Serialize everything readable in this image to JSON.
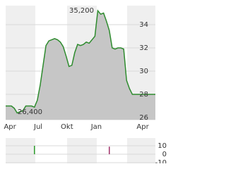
{
  "chart_data": [
    {
      "type": "area",
      "color": "#2e8b2e",
      "fill": "#c6c6c6",
      "x": [
        0,
        1,
        2,
        3,
        4,
        5,
        6,
        7,
        8,
        9,
        10,
        11,
        12,
        13,
        14,
        15,
        16,
        17,
        18,
        19,
        20,
        21,
        22,
        23,
        24,
        25,
        26,
        27,
        28,
        29,
        30,
        31,
        32,
        33,
        34,
        35,
        36,
        37,
        38,
        39,
        40,
        41,
        42,
        43,
        44,
        45,
        46,
        47,
        48,
        49,
        50,
        51,
        52
      ],
      "values": [
        27.0,
        27.0,
        27.0,
        26.8,
        26.4,
        26.5,
        26.6,
        27.0,
        27.0,
        27.0,
        26.9,
        27.5,
        28.8,
        30.5,
        32.2,
        32.6,
        32.7,
        32.8,
        32.7,
        32.5,
        32.1,
        31.3,
        30.4,
        30.5,
        31.6,
        32.3,
        32.2,
        32.3,
        32.5,
        32.4,
        32.7,
        33.0,
        35.2,
        34.9,
        35.0,
        34.3,
        33.5,
        32.0,
        31.9,
        32.0,
        32.0,
        31.9,
        29.2,
        28.5,
        28.0,
        28.0,
        28.0,
        28.0,
        28.0,
        28.0,
        28.0,
        28.0,
        28.0
      ],
      "xlim": [
        0,
        52
      ],
      "xticks": [
        {
          "value": 1.5,
          "label": "Apr"
        },
        {
          "value": 11.3,
          "label": "Jul"
        },
        {
          "value": 21.3,
          "label": "Okt"
        },
        {
          "value": 31.5,
          "label": "Jan"
        },
        {
          "value": 47.6,
          "label": "Apr"
        }
      ],
      "ylim": [
        25.8,
        35.6
      ],
      "yticks": [
        26,
        28,
        30,
        32,
        34
      ],
      "grid": true,
      "annotations": [
        "35,200",
        "26,400"
      ]
    },
    {
      "type": "bar",
      "x": [
        10,
        36
      ],
      "values": [
        10,
        9
      ],
      "colors": [
        "#2e9e2e",
        "#a0306a"
      ],
      "xlim": [
        0,
        52
      ],
      "ylim": [
        -10.8,
        19.2
      ],
      "yticks": [
        10,
        0,
        -10
      ],
      "grid": true
    }
  ]
}
